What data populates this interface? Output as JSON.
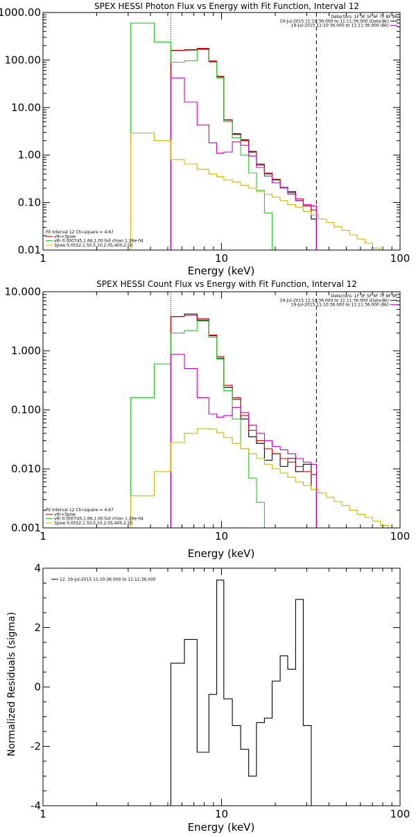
{
  "colors": {
    "black": "#000000",
    "red": "#e00000",
    "green": "#22cc22",
    "magenta": "#cc00cc",
    "yellow": "#d8b400"
  },
  "chart_data": [
    {
      "type": "line",
      "id": "photon",
      "title": "SPEX HESSI Photon Flux vs Energy with Fit Function, Interval 12",
      "xlabel": "Energy (keV)",
      "ylabel": "",
      "xscale": "log",
      "yscale": "log",
      "xlim": [
        1,
        100
      ],
      "ylim": [
        0.01,
        1000
      ],
      "xticks": [
        1,
        10,
        100
      ],
      "xtick_labels": [
        "1",
        "10",
        "100"
      ],
      "yticks": [
        0.01,
        0.1,
        1,
        10,
        100,
        1000
      ],
      "ytick_labels": [
        "0.01",
        "0.10",
        "1.00",
        "10.00",
        "100.00",
        "1000.00"
      ],
      "vlines": [
        {
          "x": 5.2,
          "style": "dotted"
        },
        {
          "x": 34,
          "style": "dashed"
        }
      ],
      "legend_top_right": [
        {
          "text": "Detectors: 1F 3F 5F 6F 7F 8F 9F",
          "color": ""
        },
        {
          "text": "19-Jul-2015 11:10:36.000 to 11:11:36.000 (Data-Bk)",
          "color": "black"
        },
        {
          "text": "19-Jul-2015 11:10:36.000 to 11:11:36.000 (Bk)",
          "color": "magenta"
        }
      ],
      "legend_bottom_left": [
        {
          "text": "Fit Interval 12   Chi-square = 4.67",
          "color": ""
        },
        {
          "text": "vth+3pow",
          "color": "red"
        },
        {
          "text": "vth 0.000745,1.66,1.00  full chian 1.26e-04",
          "color": "green"
        },
        {
          "text": "3pow 0.0552,1.50,5.10,2.05,400,2.50",
          "color": "yellow"
        }
      ],
      "series": [
        {
          "color": "black",
          "edges": [
            5.2,
            6.2,
            7.3,
            8.5,
            9.4,
            10.3,
            11.5,
            12.8,
            14.2,
            15.7,
            17.4,
            19.2,
            21.3,
            23.5,
            26.0,
            28.7,
            31.8,
            34
          ],
          "values": [
            160,
            165,
            175,
            95,
            45,
            5.5,
            2.8,
            2.1,
            1.15,
            0.62,
            0.4,
            0.3,
            0.2,
            0.17,
            0.11,
            0.085,
            0.045
          ]
        },
        {
          "color": "red",
          "edges": [
            5.2,
            6.2,
            7.3,
            8.5,
            9.4,
            10.3,
            11.5,
            12.8,
            14.2,
            15.7,
            17.4,
            19.2,
            21.3,
            23.5,
            26.0,
            28.7,
            31.8,
            34
          ],
          "values": [
            158,
            162,
            170,
            93,
            44,
            5.4,
            2.7,
            2.0,
            1.2,
            0.65,
            0.42,
            0.31,
            0.21,
            0.16,
            0.12,
            0.085,
            0.07
          ]
        },
        {
          "color": "green",
          "edges": [
            3.1,
            4.2,
            5.2,
            6.2,
            7.3,
            8.5,
            9.4,
            10.3,
            11.5,
            12.8,
            14.2,
            15.7,
            17.4,
            19.2
          ],
          "values": [
            600,
            240,
            90,
            96,
            165,
            90,
            42,
            5.0,
            2.3,
            1.0,
            0.42,
            0.18,
            0.06
          ]
        },
        {
          "color": "magenta",
          "edges": [
            5.2,
            6.2,
            7.3,
            8.5,
            9.4,
            10.3,
            11.5,
            12.8,
            14.2,
            15.7,
            17.4,
            19.2,
            21.3,
            23.5,
            26.0,
            28.7,
            31.8,
            34
          ],
          "values": [
            42,
            13,
            4.3,
            1.8,
            1.1,
            1.15,
            1.9,
            1.6,
            0.95,
            0.55,
            0.36,
            0.26,
            0.2,
            0.15,
            0.11,
            0.09,
            0.085
          ]
        },
        {
          "color": "yellow",
          "edges": [
            3.1,
            4.2,
            5.2,
            6.2,
            7.3,
            8.5,
            9.4,
            10.3,
            11.5,
            12.8,
            14.2,
            15.7,
            17.4,
            19.2,
            21.3,
            23.5,
            26.0,
            28.7,
            31.8,
            35.0,
            38.7,
            42.7,
            47.2,
            52.1,
            57.6,
            63.6,
            70.2,
            77.6
          ],
          "values": [
            2.9,
            2.0,
            0.8,
            0.65,
            0.5,
            0.4,
            0.35,
            0.3,
            0.27,
            0.23,
            0.2,
            0.17,
            0.15,
            0.13,
            0.11,
            0.09,
            0.08,
            0.065,
            0.055,
            0.045,
            0.038,
            0.031,
            0.026,
            0.021,
            0.017,
            0.014,
            0.011
          ]
        }
      ]
    },
    {
      "type": "line",
      "id": "count",
      "title": "SPEX HESSI Count Flux vs Energy with Fit Function, Interval 12",
      "xlabel": "Energy (keV)",
      "ylabel": "",
      "xscale": "log",
      "yscale": "log",
      "xlim": [
        1,
        100
      ],
      "ylim": [
        0.001,
        10
      ],
      "xticks": [
        1,
        10,
        100
      ],
      "xtick_labels": [
        "1",
        "10",
        "100"
      ],
      "yticks": [
        0.001,
        0.01,
        0.1,
        1,
        10
      ],
      "ytick_labels": [
        "0.001",
        "0.010",
        "0.100",
        "1.000",
        "10.000"
      ],
      "vlines": [
        {
          "x": 5.2,
          "style": "dotted"
        },
        {
          "x": 34,
          "style": "dashed"
        }
      ],
      "legend_top_right": [
        {
          "text": "Detectors: 1F 3F 5F 6F 7F 8F 9F",
          "color": ""
        },
        {
          "text": "19-Jul-2015 11:10:36.000 to 11:11:36.000 (Data-Bk)",
          "color": "black"
        },
        {
          "text": "19-Jul-2015 11:10:36.000 to 11:11:36.000 (Bk)",
          "color": "magenta"
        }
      ],
      "legend_bottom_left": [
        {
          "text": "Fit Interval 12   Chi-square = 4.67",
          "color": ""
        },
        {
          "text": "vth+3pow",
          "color": "red"
        },
        {
          "text": "vth 0.000745,1.66,1.00  full chian 1.26e-04",
          "color": "green"
        },
        {
          "text": "3pow 0.0552,1.50,5.10,2.05,400,2.50",
          "color": "yellow"
        }
      ],
      "series": [
        {
          "color": "black",
          "edges": [
            5.2,
            6.2,
            7.3,
            8.5,
            9.4,
            10.3,
            11.5,
            12.8,
            14.2,
            15.7,
            17.4,
            19.2,
            21.3,
            23.5,
            26.0,
            28.7,
            31.8,
            34
          ],
          "values": [
            3.8,
            4.2,
            3.3,
            1.8,
            0.75,
            0.24,
            0.15,
            0.07,
            0.035,
            0.027,
            0.014,
            0.018,
            0.011,
            0.015,
            0.009,
            0.012,
            0.0045
          ]
        },
        {
          "color": "red",
          "edges": [
            5.2,
            6.2,
            7.3,
            8.5,
            9.4,
            10.3,
            11.5,
            12.8,
            14.2,
            15.7,
            17.4,
            19.2,
            21.3,
            23.5,
            26.0,
            28.7,
            31.8,
            34
          ],
          "values": [
            3.8,
            4.0,
            3.5,
            1.85,
            0.8,
            0.26,
            0.16,
            0.08,
            0.045,
            0.03,
            0.022,
            0.018,
            0.015,
            0.013,
            0.011,
            0.009,
            0.008
          ]
        },
        {
          "color": "green",
          "edges": [
            3.1,
            4.2,
            5.2,
            6.2,
            7.3,
            8.5,
            9.4,
            10.3,
            11.5,
            12.8,
            14.2,
            15.7,
            17.4,
            19.2
          ],
          "values": [
            0.16,
            0.6,
            2.0,
            2.2,
            3.2,
            1.7,
            0.72,
            0.21,
            0.07,
            0.022,
            0.007,
            0.0027,
            0.001
          ]
        },
        {
          "color": "magenta",
          "edges": [
            5.2,
            6.2,
            7.3,
            8.5,
            9.4,
            10.3,
            11.5,
            12.8,
            14.2,
            15.7,
            17.4,
            19.2,
            21.3,
            23.5,
            26.0,
            28.7,
            31.8,
            34
          ],
          "values": [
            0.87,
            0.5,
            0.16,
            0.085,
            0.075,
            0.08,
            0.11,
            0.09,
            0.055,
            0.04,
            0.03,
            0.024,
            0.021,
            0.018,
            0.015,
            0.013,
            0.012
          ]
        },
        {
          "color": "yellow",
          "edges": [
            3.1,
            4.2,
            5.2,
            6.2,
            7.3,
            8.5,
            9.4,
            10.3,
            11.5,
            12.8,
            14.2,
            15.7,
            17.4,
            19.2,
            21.3,
            23.5,
            26.0,
            28.7,
            31.8,
            35.0,
            38.7,
            42.7,
            47.2,
            52.1,
            57.6,
            63.6,
            70.2,
            77.6,
            85.8,
            94
          ],
          "values": [
            0.0035,
            0.009,
            0.028,
            0.04,
            0.048,
            0.047,
            0.041,
            0.034,
            0.027,
            0.022,
            0.018,
            0.015,
            0.012,
            0.01,
            0.0085,
            0.0072,
            0.006,
            0.0052,
            0.0045,
            0.0039,
            0.0033,
            0.0028,
            0.0024,
            0.002,
            0.0017,
            0.0015,
            0.0013,
            0.0011,
            0.001
          ]
        }
      ]
    },
    {
      "type": "line",
      "id": "residuals",
      "title": "",
      "xlabel": "Energy (keV)",
      "ylabel": "Normalized Residuals (sigma)",
      "xscale": "log",
      "yscale": "linear",
      "xlim": [
        1,
        100
      ],
      "ylim": [
        -4,
        4
      ],
      "xticks": [
        1,
        10,
        100
      ],
      "xtick_labels": [
        "1",
        "10",
        "100"
      ],
      "yticks": [
        -4,
        -2,
        0,
        2,
        4
      ],
      "ytick_labels": [
        "-4",
        "-2",
        "0",
        "2",
        "4"
      ],
      "vlines": [],
      "legend_top_left": [
        {
          "text": "12. 19-Jul-2015 11:10:36.000 to 11:11:36.000",
          "color": "black"
        }
      ],
      "series": [
        {
          "color": "black",
          "edges": [
            5.2,
            6.2,
            7.3,
            8.5,
            9.4,
            10.3,
            11.5,
            12.8,
            14.2,
            15.7,
            17.4,
            19.2,
            21.3,
            23.5,
            26.0,
            28.7,
            31.8,
            34
          ],
          "values": [
            0.8,
            1.6,
            -2.2,
            -0.25,
            3.6,
            -0.4,
            -1.3,
            -2.1,
            -3.0,
            -1.2,
            -1.05,
            0.2,
            1.05,
            0.6,
            2.95,
            -1.3,
            -4.0
          ],
          "drop_to_bottom": true
        }
      ]
    }
  ]
}
